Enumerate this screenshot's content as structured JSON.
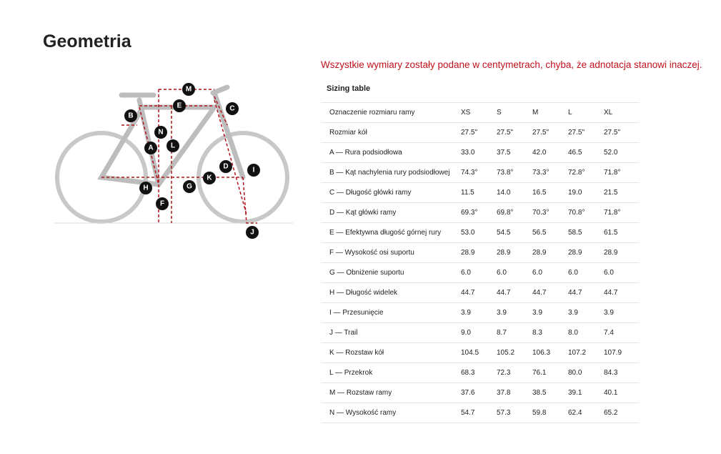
{
  "header": {
    "title": "Geometria"
  },
  "note": "Wszystkie wymiary zostały podane w centymetrach, chyba, że adnotacja stanowi inaczej.",
  "table": {
    "caption": "Sizing table",
    "header": [
      "Oznaczenie rozmiaru ramy",
      "XS",
      "S",
      "M",
      "L",
      "XL"
    ],
    "rows": [
      [
        "Rozmiar kół",
        "27.5\"",
        "27.5\"",
        "27.5\"",
        "27.5\"",
        "27.5\""
      ],
      [
        "A — Rura podsiodłowa",
        "33.0",
        "37.5",
        "42.0",
        "46.5",
        "52.0"
      ],
      [
        "B — Kąt nachylenia rury podsiodłowej",
        "74.3°",
        "73.8°",
        "73.3°",
        "72.8°",
        "71.8°"
      ],
      [
        "C — Długość główki ramy",
        "11.5",
        "14.0",
        "16.5",
        "19.0",
        "21.5"
      ],
      [
        "D — Kąt główki ramy",
        "69.3°",
        "69.8°",
        "70.3°",
        "70.8°",
        "71.8°"
      ],
      [
        "E — Efektywna długość górnej rury",
        "53.0",
        "54.5",
        "56.5",
        "58.5",
        "61.5"
      ],
      [
        "F — Wysokość osi suportu",
        "28.9",
        "28.9",
        "28.9",
        "28.9",
        "28.9"
      ],
      [
        "G — Obniżenie suportu",
        "6.0",
        "6.0",
        "6.0",
        "6.0",
        "6.0"
      ],
      [
        "H — Długość widelek",
        "44.7",
        "44.7",
        "44.7",
        "44.7",
        "44.7"
      ],
      [
        "I — Przesunięcie",
        "3.9",
        "3.9",
        "3.9",
        "3.9",
        "3.9"
      ],
      [
        "J — Trail",
        "9.0",
        "8.7",
        "8.3",
        "8.0",
        "7.4"
      ],
      [
        "K — Rozstaw kół",
        "104.5",
        "105.2",
        "106.3",
        "107.2",
        "107.9"
      ],
      [
        "L — Przekrok",
        "68.3",
        "72.3",
        "76.1",
        "80.0",
        "84.3"
      ],
      [
        "M — Rozstaw ramy",
        "37.6",
        "37.8",
        "38.5",
        "39.1",
        "40.1"
      ],
      [
        "N — Wysokość ramy",
        "54.7",
        "57.3",
        "59.8",
        "62.4",
        "65.2"
      ]
    ]
  },
  "diagram": {
    "markers": [
      "M",
      "E",
      "C",
      "B",
      "N",
      "L",
      "A",
      "D",
      "K",
      "I",
      "H",
      "G",
      "F",
      "J"
    ]
  }
}
